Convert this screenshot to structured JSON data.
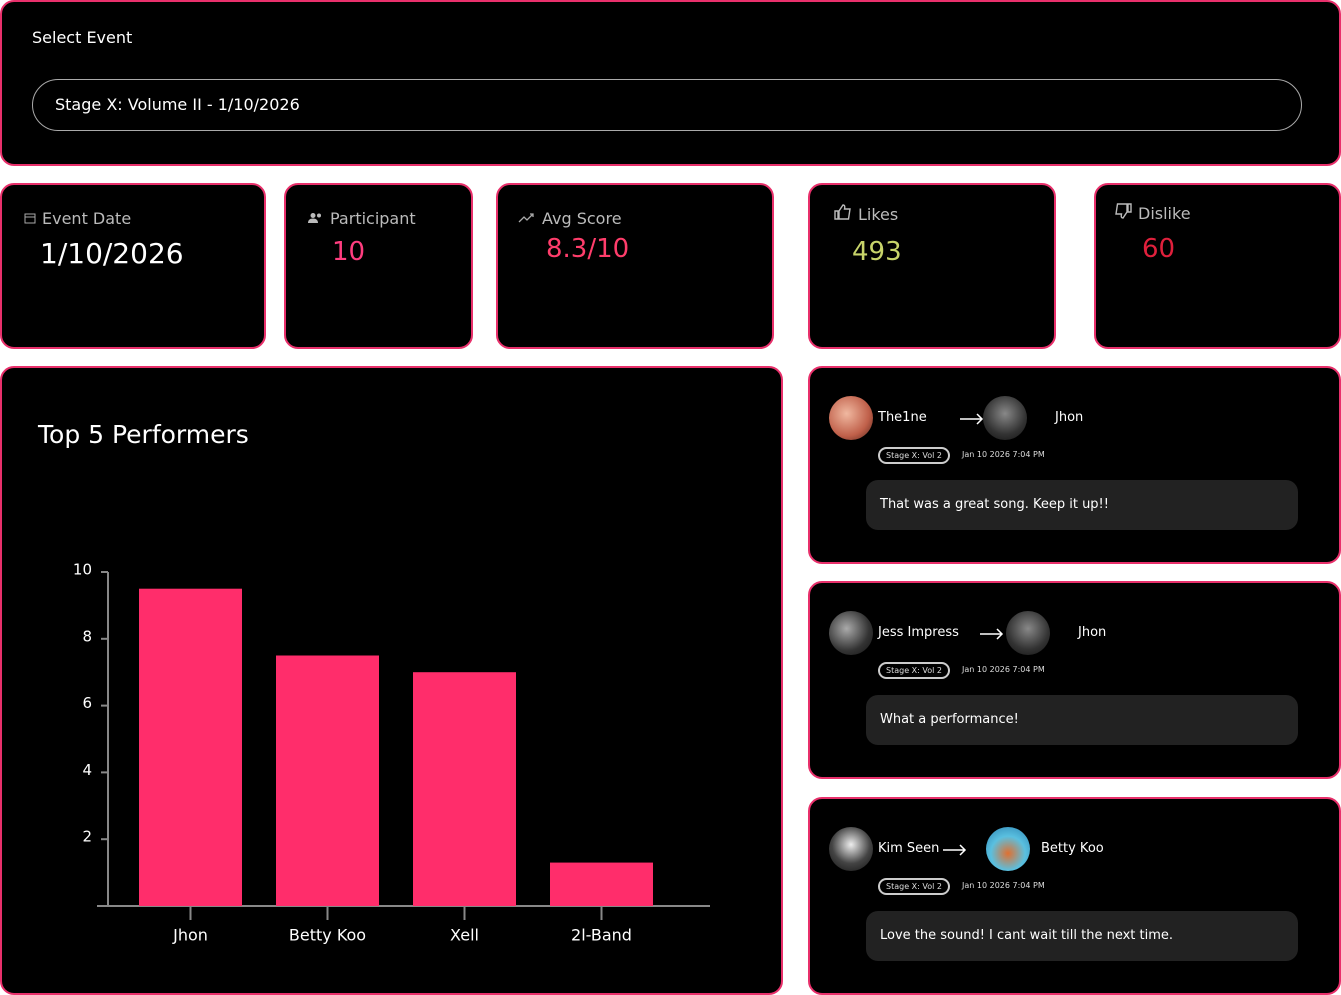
{
  "select_event": {
    "label": "Select Event",
    "value": "Stage X: Volume II - 1/10/2026"
  },
  "stats": [
    {
      "label": "Event Date",
      "value": "1/10/2026"
    },
    {
      "label": "Participant",
      "value": 10
    },
    {
      "label": "Avg Score",
      "value": "8.3/10"
    },
    {
      "label": "Likes",
      "value": 493
    },
    {
      "label": "Dislike",
      "value": 60
    }
  ],
  "chart_data": {
    "type": "bar",
    "title": "Top 5 Performers",
    "categories": [
      "Jhon",
      "Betty Koo",
      "Xell",
      "2l-Band"
    ],
    "values": [
      9.5,
      7.5,
      7,
      1.3
    ],
    "color": "#ff2d6b",
    "ylim": [
      0,
      10
    ],
    "yticks": [
      2,
      4,
      6,
      8,
      10
    ]
  },
  "comments": [
    {
      "from": "The1ne",
      "to": "Jhon",
      "tag": "Stage X: Vol 2",
      "time": "Jan 10 2026 7:04 PM",
      "text": "That was a great song. Keep it up!!"
    },
    {
      "from": "Jess Impress",
      "to": "Jhon",
      "tag": "Stage X: Vol 2",
      "time": "Jan 10 2026 7:04 PM",
      "text": "What a performance!"
    },
    {
      "from": "Kim Seen",
      "to": "Betty Koo",
      "tag": "Stage X: Vol 2",
      "time": "Jan 10 2026 7:04 PM",
      "text": "Love the sound! I cant wait till the next time."
    }
  ]
}
